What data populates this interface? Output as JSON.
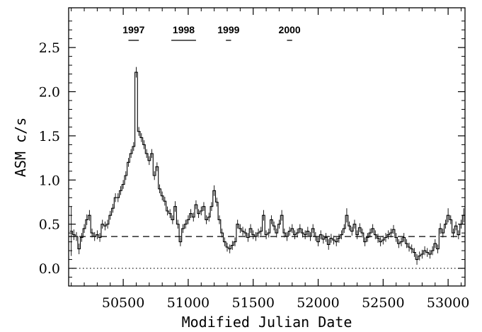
{
  "chart_data": {
    "type": "line",
    "xlabel": "Modified Julian Date",
    "ylabel": "ASM c/s",
    "xlim": [
      50080,
      53130
    ],
    "ylim": [
      -0.2,
      2.95
    ],
    "xticks": [
      50500,
      51000,
      51500,
      52000,
      52500,
      53000
    ],
    "yticks": [
      0.0,
      0.5,
      1.0,
      1.5,
      2.0,
      2.5
    ],
    "ytick_labels": [
      "0.0",
      "0.5",
      "1.0",
      "1.5",
      "2.0",
      "2.5"
    ],
    "grid": false,
    "reference_lines": [
      {
        "style": "dashed",
        "y": 0.36
      },
      {
        "style": "dotted",
        "y": 0.0
      }
    ],
    "year_markers": [
      {
        "label": "1997",
        "x_start": 50540,
        "x_end": 50620
      },
      {
        "label": "1998",
        "x_start": 50870,
        "x_end": 51060
      },
      {
        "label": "1999",
        "x_start": 51290,
        "x_end": 51330
      },
      {
        "label": "2000",
        "x_start": 51760,
        "x_end": 51800
      }
    ],
    "series": [
      {
        "style": "histogram-step",
        "points": [
          [
            50100,
            0.42
          ],
          [
            50120,
            0.38
          ],
          [
            50140,
            0.36
          ],
          [
            50160,
            0.22
          ],
          [
            50180,
            0.35
          ],
          [
            50200,
            0.45
          ],
          [
            50220,
            0.55
          ],
          [
            50240,
            0.6
          ],
          [
            50260,
            0.4
          ],
          [
            50280,
            0.36
          ],
          [
            50300,
            0.38
          ],
          [
            50320,
            0.35
          ],
          [
            50340,
            0.5
          ],
          [
            50360,
            0.48
          ],
          [
            50380,
            0.5
          ],
          [
            50400,
            0.6
          ],
          [
            50420,
            0.68
          ],
          [
            50440,
            0.8
          ],
          [
            50460,
            0.8
          ],
          [
            50480,
            0.88
          ],
          [
            50500,
            0.95
          ],
          [
            50520,
            1.05
          ],
          [
            50540,
            1.2
          ],
          [
            50560,
            1.3
          ],
          [
            50580,
            1.38
          ],
          [
            50600,
            2.22
          ],
          [
            50620,
            1.55
          ],
          [
            50640,
            1.48
          ],
          [
            50660,
            1.4
          ],
          [
            50680,
            1.3
          ],
          [
            50700,
            1.22
          ],
          [
            50720,
            1.3
          ],
          [
            50740,
            1.05
          ],
          [
            50760,
            1.15
          ],
          [
            50780,
            0.9
          ],
          [
            50800,
            0.82
          ],
          [
            50820,
            0.76
          ],
          [
            50840,
            0.65
          ],
          [
            50860,
            0.62
          ],
          [
            50880,
            0.55
          ],
          [
            50900,
            0.7
          ],
          [
            50920,
            0.5
          ],
          [
            50940,
            0.3
          ],
          [
            50960,
            0.45
          ],
          [
            50980,
            0.5
          ],
          [
            51000,
            0.55
          ],
          [
            51020,
            0.62
          ],
          [
            51040,
            0.58
          ],
          [
            51060,
            0.72
          ],
          [
            51080,
            0.62
          ],
          [
            51100,
            0.65
          ],
          [
            51120,
            0.7
          ],
          [
            51140,
            0.55
          ],
          [
            51160,
            0.58
          ],
          [
            51180,
            0.7
          ],
          [
            51200,
            0.88
          ],
          [
            51220,
            0.75
          ],
          [
            51240,
            0.55
          ],
          [
            51260,
            0.4
          ],
          [
            51280,
            0.3
          ],
          [
            51300,
            0.24
          ],
          [
            51320,
            0.22
          ],
          [
            51340,
            0.26
          ],
          [
            51360,
            0.3
          ],
          [
            51380,
            0.5
          ],
          [
            51400,
            0.45
          ],
          [
            51420,
            0.42
          ],
          [
            51440,
            0.4
          ],
          [
            51460,
            0.35
          ],
          [
            51480,
            0.45
          ],
          [
            51500,
            0.38
          ],
          [
            51520,
            0.36
          ],
          [
            51540,
            0.4
          ],
          [
            51560,
            0.42
          ],
          [
            51580,
            0.6
          ],
          [
            51600,
            0.38
          ],
          [
            51620,
            0.4
          ],
          [
            51640,
            0.55
          ],
          [
            51660,
            0.48
          ],
          [
            51680,
            0.4
          ],
          [
            51700,
            0.5
          ],
          [
            51720,
            0.6
          ],
          [
            51740,
            0.4
          ],
          [
            51760,
            0.36
          ],
          [
            51780,
            0.42
          ],
          [
            51800,
            0.45
          ],
          [
            51820,
            0.38
          ],
          [
            51840,
            0.4
          ],
          [
            51860,
            0.45
          ],
          [
            51880,
            0.4
          ],
          [
            51900,
            0.38
          ],
          [
            51920,
            0.42
          ],
          [
            51940,
            0.36
          ],
          [
            51960,
            0.45
          ],
          [
            51980,
            0.36
          ],
          [
            52000,
            0.3
          ],
          [
            52020,
            0.38
          ],
          [
            52040,
            0.33
          ],
          [
            52060,
            0.35
          ],
          [
            52080,
            0.27
          ],
          [
            52100,
            0.34
          ],
          [
            52120,
            0.32
          ],
          [
            52140,
            0.3
          ],
          [
            52160,
            0.34
          ],
          [
            52180,
            0.38
          ],
          [
            52200,
            0.45
          ],
          [
            52220,
            0.6
          ],
          [
            52240,
            0.48
          ],
          [
            52260,
            0.42
          ],
          [
            52280,
            0.5
          ],
          [
            52300,
            0.38
          ],
          [
            52320,
            0.46
          ],
          [
            52340,
            0.4
          ],
          [
            52360,
            0.3
          ],
          [
            52380,
            0.35
          ],
          [
            52400,
            0.4
          ],
          [
            52420,
            0.45
          ],
          [
            52440,
            0.38
          ],
          [
            52460,
            0.34
          ],
          [
            52480,
            0.3
          ],
          [
            52500,
            0.32
          ],
          [
            52520,
            0.35
          ],
          [
            52540,
            0.38
          ],
          [
            52560,
            0.4
          ],
          [
            52580,
            0.44
          ],
          [
            52600,
            0.35
          ],
          [
            52620,
            0.28
          ],
          [
            52640,
            0.3
          ],
          [
            52660,
            0.35
          ],
          [
            52680,
            0.28
          ],
          [
            52700,
            0.24
          ],
          [
            52720,
            0.22
          ],
          [
            52740,
            0.18
          ],
          [
            52760,
            0.1
          ],
          [
            52780,
            0.14
          ],
          [
            52800,
            0.16
          ],
          [
            52820,
            0.2
          ],
          [
            52840,
            0.18
          ],
          [
            52860,
            0.16
          ],
          [
            52880,
            0.2
          ],
          [
            52900,
            0.28
          ],
          [
            52920,
            0.22
          ],
          [
            52940,
            0.45
          ],
          [
            52960,
            0.4
          ],
          [
            52980,
            0.5
          ],
          [
            53000,
            0.6
          ],
          [
            53020,
            0.55
          ],
          [
            53040,
            0.4
          ],
          [
            53060,
            0.48
          ],
          [
            53080,
            0.38
          ],
          [
            53100,
            0.5
          ],
          [
            53120,
            0.6
          ]
        ],
        "errors": [
          0.28,
          0.06,
          0.05,
          0.06,
          0.05,
          0.05,
          0.06,
          0.06,
          0.05,
          0.05,
          0.05,
          0.05,
          0.05,
          0.05,
          0.05,
          0.05,
          0.05,
          0.05,
          0.05,
          0.05,
          0.05,
          0.05,
          0.05,
          0.05,
          0.05,
          0.06,
          0.05,
          0.05,
          0.05,
          0.05,
          0.05,
          0.05,
          0.05,
          0.05,
          0.05,
          0.05,
          0.05,
          0.05,
          0.05,
          0.05,
          0.06,
          0.05,
          0.05,
          0.05,
          0.05,
          0.05,
          0.05,
          0.05,
          0.05,
          0.05,
          0.05,
          0.05,
          0.05,
          0.05,
          0.05,
          0.06,
          0.05,
          0.05,
          0.05,
          0.05,
          0.05,
          0.05,
          0.05,
          0.05,
          0.05,
          0.05,
          0.05,
          0.05,
          0.05,
          0.05,
          0.05,
          0.05,
          0.05,
          0.05,
          0.06,
          0.05,
          0.05,
          0.05,
          0.05,
          0.05,
          0.05,
          0.06,
          0.05,
          0.05,
          0.05,
          0.05,
          0.05,
          0.05,
          0.05,
          0.05,
          0.05,
          0.05,
          0.05,
          0.05,
          0.05,
          0.05,
          0.05,
          0.05,
          0.05,
          0.06,
          0.05,
          0.05,
          0.05,
          0.05,
          0.05,
          0.05,
          0.08,
          0.05,
          0.05,
          0.05,
          0.05,
          0.05,
          0.05,
          0.05,
          0.05,
          0.05,
          0.05,
          0.05,
          0.05,
          0.05,
          0.05,
          0.05,
          0.05,
          0.05,
          0.05,
          0.05,
          0.05,
          0.05,
          0.05,
          0.05,
          0.05,
          0.05,
          0.05,
          0.06,
          0.05,
          0.05,
          0.05,
          0.05,
          0.05,
          0.05,
          0.05,
          0.05,
          0.06,
          0.05,
          0.05,
          0.08,
          0.05,
          0.05,
          0.05,
          0.05,
          0.05,
          0.08
        ]
      }
    ]
  }
}
